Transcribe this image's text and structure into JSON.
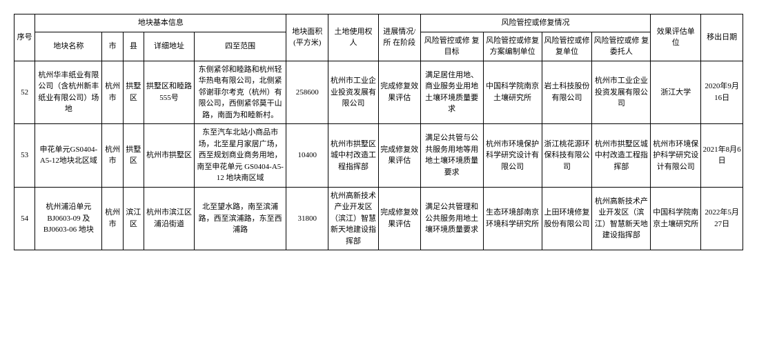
{
  "headers": {
    "group_basic": "地块基本信息",
    "group_risk": "风险管控或修复情况",
    "seq": "序号",
    "name": "地块名称",
    "city": "市",
    "county": "县",
    "addr": "详细地址",
    "bounds": "四至范围",
    "area": "地块面积\n(平方米)",
    "rights": "土地使用权\n人",
    "stage": "进展情况/所\n在阶段",
    "target": "风险管控或修\n复目标",
    "plan_unit": "风险管控或修复\n方案编制单位",
    "remed_unit": "风险管控或修\n复单位",
    "entrust": "风险管控或修\n复委托人",
    "eval_unit": "效果评估单\n位",
    "removal_date": "移出日期"
  },
  "rows": [
    {
      "seq": "52",
      "name": "杭州华丰纸业有限公司（含杭州新丰纸业有限公司）场地",
      "city": "杭州市",
      "county": "拱墅区",
      "addr": "拱墅区和睦路 555号",
      "bounds": "东侧紧邻和睦路和杭州轻华热电有限公司，北侧紧邻谢菲尔考克（杭州）有限公司，西侧紧邻莫干山路，南面为和睦新村。",
      "area": "258600",
      "rights": "杭州市工业企业投资发展有限公司",
      "stage": "完成修复效果评估",
      "target": "满足居住用地、商业服务业用地土壤环境质量要求",
      "plan_unit": "中国科学院南京土壤研究所",
      "remed_unit": "岩土科技股份有限公司",
      "entrust": "杭州市工业企业投资发展有限公司",
      "eval_unit": "浙江大学",
      "removal_date": "2020年9月16日"
    },
    {
      "seq": "53",
      "name": "申花单元GS0404-A5-12地块北区域",
      "city": "杭州市",
      "county": "拱墅区",
      "addr": "杭州市拱墅区",
      "bounds": "东至汽车北站小商品市场，北至星月家居广场，西至规划商业商务用地，南至申花单元 GS0404-A5-12 地块南区域",
      "area": "10400",
      "rights": "杭州市拱墅区城中村改造工程指挥部",
      "stage": "完成修复效果评估",
      "target": "满足公共管与公共服务用地等用地土壤环境质量要求",
      "plan_unit": "杭州市环境保护科学研究设计有限公司",
      "remed_unit": "浙江桃花源环保科技有限公司",
      "entrust": "杭州市拱墅区城中村改造工程指挥部",
      "eval_unit": "杭州市环境保护科学研究设计有限公司",
      "removal_date": "2021年8月6日"
    },
    {
      "seq": "54",
      "name": "杭州浦沿单元BJ0603-09 及BJ0603-06 地块",
      "city": "杭州市",
      "county": "滨江区",
      "addr": "杭州市滨江区浦沿街道",
      "bounds": "北至望水路，南至滨浦路，西至滨浦路，东至西浦路",
      "area": "31800",
      "rights": "杭州高新技术产业开发区（滨江）智慧新天地建设指挥部",
      "stage": "完成修复效果评估",
      "target": "满足公共管理和公共服务用地土壤环境质量要求",
      "plan_unit": "生态环境部南京环境科学研究所",
      "remed_unit": "上田环境修复股份有限公司",
      "entrust": "杭州高新技术产业开发区（滨江）智慧新天地建设指挥部",
      "eval_unit": "中国科学院南京土壤研究所",
      "removal_date": "2022年5月27日"
    }
  ]
}
